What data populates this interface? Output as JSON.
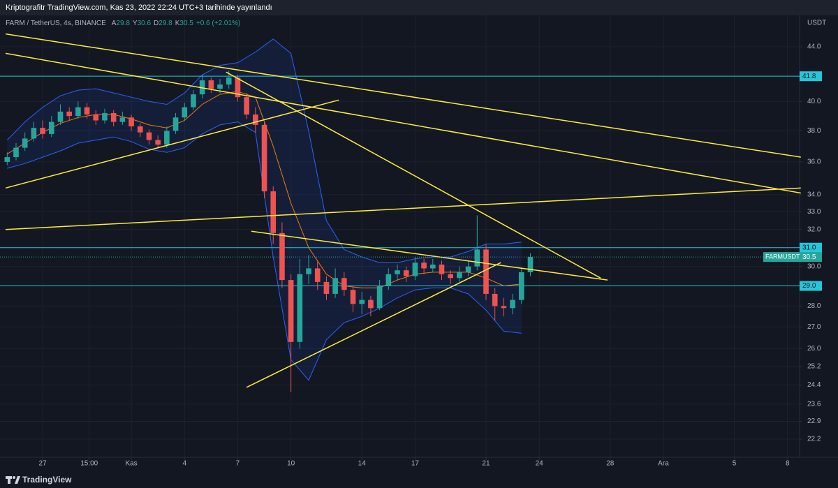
{
  "header": "Kriptografitr TradingView.com, Kas 23, 2022 22:24 UTC+3 tarihinde yayınlandı",
  "footer": "TradingView",
  "chart_data": {
    "type": "candlestick",
    "symbol": "FARM / TetherUS, 4s, BINANCE",
    "ohlc": [
      {
        "key": "A",
        "value": "29.8"
      },
      {
        "key": "Y",
        "value": "30.6"
      },
      {
        "key": "D",
        "value": "29.8"
      },
      {
        "key": "K",
        "value": "30.5"
      }
    ],
    "change": "+0.6 (+2.01%)",
    "currency": "USDT",
    "log_scale": true,
    "grid": true,
    "up_color": "#26a69a",
    "down_color": "#ef5350",
    "x": [
      -2,
      -1.5,
      -1,
      -0.5,
      0,
      0.5,
      1,
      1.5,
      2,
      2.5,
      3,
      3.5,
      4,
      4.5,
      5,
      5.5,
      6,
      6.5,
      7,
      7.5,
      8,
      8.5,
      9,
      9.5,
      10,
      10.5,
      11,
      11.5,
      12,
      12.5,
      13,
      13.5,
      14,
      14.5,
      15,
      15.5,
      16,
      16.5,
      17,
      17.5,
      18,
      18.5,
      19,
      19.5,
      20,
      20.5,
      21,
      21.5,
      22,
      22.5,
      23,
      23.5,
      24,
      24.5,
      25,
      25.5,
      26,
      26.5,
      27,
      27.5
    ],
    "open": [
      36.0,
      36.3,
      36.9,
      37.5,
      38.2,
      37.8,
      38.6,
      39.3,
      39.0,
      39.6,
      39.1,
      38.7,
      39.2,
      38.6,
      38.9,
      38.3,
      37.9,
      37.4,
      37.1,
      38.0,
      38.9,
      39.6,
      40.5,
      41.5,
      40.9,
      41.2,
      41.7,
      40.3,
      39.1,
      38.4,
      34.2,
      31.8,
      29.3,
      26.3,
      29.6,
      29.9,
      29.2,
      28.6,
      29.4,
      28.8,
      28.1,
      28.3,
      27.9,
      29.0,
      29.6,
      29.8,
      29.5,
      30.2,
      29.9,
      30.1,
      29.6,
      29.4,
      29.7,
      30.0,
      30.9,
      28.6,
      28.0,
      27.9,
      28.3,
      29.7
    ],
    "high": [
      36.6,
      37.2,
      37.9,
      38.6,
      38.7,
      39.0,
      39.8,
      39.6,
      40.0,
      39.9,
      39.4,
      39.5,
      39.4,
      39.3,
      39.1,
      38.5,
      38.1,
      37.7,
      38.3,
      39.2,
      39.9,
      40.8,
      41.9,
      41.7,
      41.6,
      42.2,
      41.9,
      40.6,
      39.6,
      38.6,
      34.5,
      32.4,
      29.6,
      30.4,
      30.6,
      30.3,
      29.5,
      29.9,
      29.7,
      29.0,
      28.7,
      28.5,
      29.3,
      29.9,
      30.1,
      30.0,
      30.5,
      30.4,
      30.4,
      30.3,
      29.8,
      30.0,
      30.3,
      32.8,
      31.2,
      28.9,
      28.4,
      28.6,
      29.9,
      30.7
    ],
    "low": [
      35.8,
      36.1,
      36.7,
      37.3,
      37.5,
      37.6,
      38.4,
      38.7,
      38.8,
      38.8,
      38.4,
      38.5,
      38.3,
      38.4,
      38.0,
      37.6,
      37.1,
      36.9,
      36.9,
      37.8,
      38.7,
      39.4,
      40.2,
      40.6,
      40.6,
      40.9,
      40.0,
      38.8,
      37.9,
      33.8,
      31.2,
      28.9,
      24.1,
      26.0,
      29.1,
      28.8,
      28.3,
      28.4,
      28.5,
      27.7,
      27.6,
      27.5,
      27.8,
      28.8,
      29.3,
      29.2,
      29.3,
      29.6,
      29.7,
      29.3,
      29.1,
      29.2,
      29.5,
      29.8,
      28.3,
      27.3,
      27.5,
      27.6,
      28.1,
      29.5
    ],
    "close": [
      36.3,
      36.9,
      37.5,
      38.2,
      37.8,
      38.6,
      39.3,
      39.0,
      39.6,
      39.1,
      38.7,
      39.2,
      38.6,
      38.9,
      38.3,
      37.9,
      37.4,
      37.1,
      38.0,
      38.9,
      39.6,
      40.5,
      41.5,
      40.9,
      41.2,
      41.7,
      40.3,
      39.1,
      38.4,
      34.2,
      31.8,
      29.3,
      26.3,
      29.6,
      29.9,
      29.2,
      28.6,
      29.4,
      28.8,
      28.1,
      28.3,
      27.9,
      29.0,
      29.6,
      29.8,
      29.5,
      30.2,
      29.9,
      30.1,
      29.6,
      29.4,
      29.7,
      30.0,
      30.9,
      28.6,
      28.0,
      27.9,
      28.3,
      29.7,
      30.5
    ],
    "bands": {
      "color": "#2962ff",
      "fill": "#2962ff",
      "basis_color": "#f57c00",
      "x": [
        -2,
        -1,
        0,
        1,
        2,
        3,
        4,
        5,
        6,
        7,
        8,
        9,
        10,
        11,
        12,
        13,
        14,
        15,
        16,
        17,
        18,
        19,
        20,
        21,
        22,
        23,
        24,
        25,
        26,
        27
      ],
      "upper": [
        37.4,
        38.6,
        39.6,
        40.4,
        40.8,
        40.9,
        40.6,
        40.3,
        40.0,
        39.8,
        40.6,
        41.9,
        42.6,
        42.8,
        43.6,
        44.6,
        43.5,
        38.0,
        32.5,
        30.9,
        30.5,
        30.2,
        30.2,
        30.4,
        30.5,
        30.5,
        30.8,
        31.2,
        31.2,
        31.3
      ],
      "lower": [
        35.6,
        35.9,
        36.3,
        36.7,
        37.2,
        37.4,
        37.6,
        37.3,
        36.8,
        36.6,
        36.9,
        37.8,
        38.4,
        38.6,
        37.9,
        30.5,
        25.5,
        24.6,
        26.4,
        27.2,
        27.5,
        27.9,
        28.4,
        28.8,
        28.9,
        28.9,
        28.6,
        27.8,
        26.8,
        26.7
      ],
      "basis": [
        36.5,
        37.2,
        37.9,
        38.5,
        38.9,
        39.1,
        39.1,
        38.8,
        38.4,
        38.2,
        38.7,
        39.8,
        40.5,
        40.7,
        40.3,
        37.0,
        33.5,
        31.0,
        29.6,
        29.0,
        28.9,
        28.9,
        29.3,
        29.6,
        29.7,
        29.7,
        29.7,
        29.4,
        29.0,
        29.1
      ]
    },
    "trendlines": {
      "color": "#ffeb3b",
      "lines": [
        {
          "x": [
            -2.09,
            42.75
          ],
          "y": [
            45.0,
            36.3
          ]
        },
        {
          "x": [
            -2.09,
            42.75
          ],
          "y": [
            43.5,
            34.1
          ]
        },
        {
          "x": [
            -2.09,
            16.7
          ],
          "y": [
            34.4,
            40.1
          ]
        },
        {
          "x": [
            10.35,
            31.46
          ],
          "y": [
            42.1,
            29.4
          ]
        },
        {
          "x": [
            -2.09,
            42.75
          ],
          "y": [
            32.0,
            34.4
          ]
        },
        {
          "x": [
            11.77,
            31.85
          ],
          "y": [
            31.9,
            29.3
          ]
        },
        {
          "x": [
            11.5,
            25.83
          ],
          "y": [
            24.3,
            30.2
          ]
        }
      ]
    },
    "levels": {
      "color": "#26c6da",
      "values": [
        41.8,
        {
          "value": 31,
          "label": "31.0"
        },
        {
          "value": 29,
          "label": "29.0"
        }
      ]
    },
    "last_price": 30.5,
    "last_label": "FARMUSDT",
    "xlim": [
      -2.09,
      42.68
    ],
    "xticks": [
      {
        "value": 0,
        "label": "27"
      },
      {
        "value": 2.625,
        "label": "15:00"
      },
      {
        "value": 5,
        "label": "Kas"
      },
      {
        "value": 8,
        "label": "4"
      },
      {
        "value": 11,
        "label": "7"
      },
      {
        "value": 14,
        "label": "10"
      },
      {
        "value": 18,
        "label": "14"
      },
      {
        "value": 21,
        "label": "17"
      },
      {
        "value": 25,
        "label": "21"
      },
      {
        "value": 28,
        "label": "24"
      },
      {
        "value": 32,
        "label": "28"
      },
      {
        "value": 35,
        "label": "Ara"
      },
      {
        "value": 39,
        "label": "5"
      },
      {
        "value": 42,
        "label": "8"
      }
    ],
    "ylim": [
      21.51,
      46.48
    ],
    "yticks": [
      {
        "value": 44,
        "label": "44.0"
      },
      {
        "value": 40,
        "label": "40.0"
      },
      {
        "value": 38,
        "label": "38.0"
      },
      {
        "value": 36,
        "label": "36.0"
      },
      {
        "value": 34,
        "label": "34.0"
      },
      {
        "value": 33,
        "label": "33.0"
      },
      {
        "value": 32,
        "label": "32.0"
      },
      {
        "value": 30,
        "label": "30.0"
      },
      {
        "value": 28,
        "label": "28.0"
      },
      {
        "value": 27,
        "label": "27.0"
      },
      {
        "value": 26,
        "label": "26.0"
      },
      25.2,
      24.4,
      23.6,
      22.9,
      22.2
    ]
  }
}
